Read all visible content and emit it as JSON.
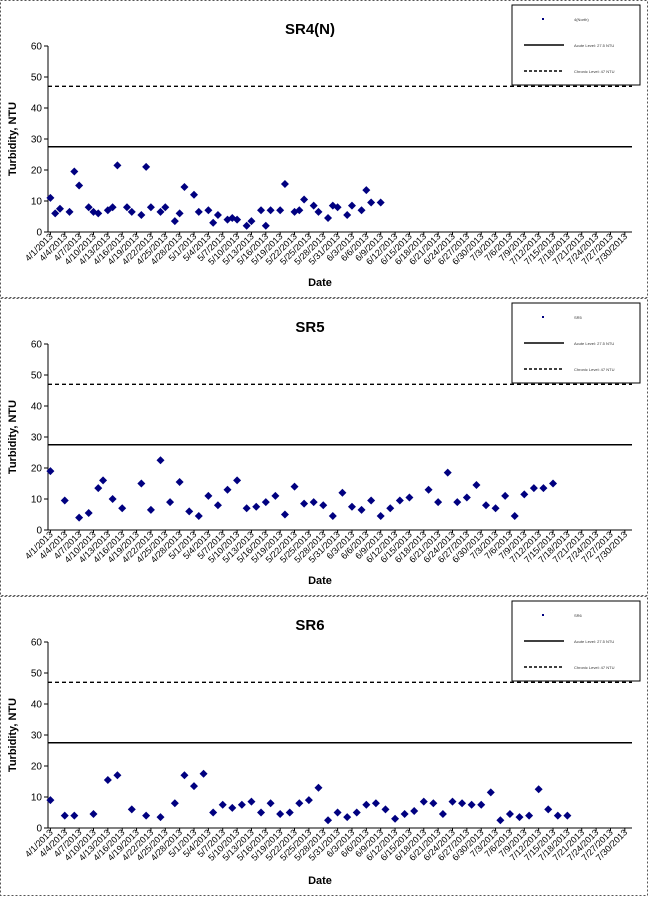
{
  "chart_data": [
    {
      "type": "scatter",
      "title": "SR4(N)",
      "xlabel": "Date",
      "ylabel": "Turbidity, NTU",
      "ylim": [
        0,
        60
      ],
      "yticks": [
        0,
        10,
        20,
        30,
        40,
        50,
        60
      ],
      "xticks": [
        "4/1/2013",
        "4/4/2013",
        "4/7/2013",
        "4/10/2013",
        "4/13/2013",
        "4/16/2013",
        "4/19/2013",
        "4/22/2013",
        "4/25/2013",
        "4/28/2013",
        "5/1/2013",
        "5/4/2013",
        "5/7/2013",
        "5/10/2013",
        "5/13/2013",
        "5/16/2013",
        "5/19/2013",
        "5/22/2013",
        "5/25/2013",
        "5/28/2013",
        "5/31/2013",
        "6/3/2013",
        "6/6/2013",
        "6/9/2013",
        "6/12/2013",
        "6/15/2013",
        "6/18/2013",
        "6/21/2013",
        "6/24/2013",
        "6/27/2013",
        "6/30/2013",
        "7/3/2013",
        "7/6/2013",
        "7/9/2013",
        "7/12/2013",
        "7/15/2013",
        "7/18/2013",
        "7/21/2013",
        "7/24/2013",
        "7/27/2013",
        "7/30/2013"
      ],
      "series": [
        {
          "name": "4(North)",
          "color": "#000080",
          "x": [
            "4/1/2013",
            "4/2/2013",
            "4/3/2013",
            "4/5/2013",
            "4/6/2013",
            "4/7/2013",
            "4/9/2013",
            "4/10/2013",
            "4/11/2013",
            "4/13/2013",
            "4/14/2013",
            "4/15/2013",
            "4/17/2013",
            "4/18/2013",
            "4/20/2013",
            "4/21/2013",
            "4/22/2013",
            "4/24/2013",
            "4/25/2013",
            "4/27/2013",
            "4/28/2013",
            "4/29/2013",
            "5/1/2013",
            "5/2/2013",
            "5/4/2013",
            "5/5/2013",
            "5/6/2013",
            "5/8/2013",
            "5/9/2013",
            "5/10/2013",
            "5/12/2013",
            "5/13/2013",
            "5/15/2013",
            "5/16/2013",
            "5/17/2013",
            "5/19/2013",
            "5/20/2013",
            "5/22/2013",
            "5/23/2013",
            "5/24/2013",
            "5/26/2013",
            "5/27/2013",
            "5/29/2013",
            "5/30/2013",
            "5/31/2013",
            "6/2/2013",
            "6/3/2013",
            "6/5/2013",
            "6/6/2013",
            "6/7/2013",
            "6/9/2013",
            "6/10/2013",
            "6/12/2013",
            "6/13/2013",
            "6/14/2013",
            "6/16/2013",
            "6/17/2013",
            "6/19/2013",
            "6/20/2013",
            "6/21/2013",
            "6/23/2013",
            "6/24/2013",
            "6/26/2013",
            "6/27/2013",
            "6/28/2013",
            "6/30/2013",
            "7/1/2013",
            "7/3/2013",
            "7/4/2013",
            "7/5/2013",
            "7/7/2013",
            "7/8/2013",
            "7/10/2013",
            "7/11/2013",
            "7/12/2013",
            "7/14/2013",
            "7/15/2013",
            "7/17/2013",
            "7/18/2013",
            "7/20/2013",
            "7/21/2013",
            "7/23/2013",
            "7/24/2013",
            "7/25/2013",
            "7/27/2013",
            "7/28/2013",
            "7/30/2013",
            "7/31/2013"
          ],
          "y": [
            11,
            6,
            7.5,
            6.5,
            19.5,
            15,
            8,
            6.5,
            6,
            7,
            8,
            21.5,
            8,
            6.5,
            5.5,
            21,
            8,
            6.5,
            8,
            3.5,
            6,
            14.5,
            12,
            6.5,
            7,
            3,
            5.5,
            4,
            4.5,
            4,
            2,
            3.5,
            7,
            2,
            7,
            7,
            15.5,
            6.5,
            7,
            10.5,
            8.5,
            6.5,
            4.5,
            8.5,
            8,
            5.5,
            8.5,
            7,
            13.5,
            9.5,
            9.5,
            null,
            null,
            null,
            null,
            null,
            null,
            null,
            null,
            null,
            null,
            null,
            null,
            null,
            null,
            null,
            null,
            null,
            null,
            null,
            null,
            null,
            null,
            null,
            null,
            null,
            null,
            null,
            null,
            null,
            null,
            null,
            null,
            null,
            null,
            null,
            null,
            null
          ]
        }
      ],
      "reference_lines": [
        {
          "name": "Acute Level: 27.5 NTU",
          "value": 27.5,
          "style": "solid"
        },
        {
          "name": "Chronic Level: 47 NTU",
          "value": 47,
          "style": "dashed"
        }
      ],
      "legend": "top-right",
      "grid": false
    },
    {
      "type": "scatter",
      "title": "SR5",
      "xlabel": "Date",
      "ylabel": "Turbidity, NTU",
      "ylim": [
        0,
        60
      ],
      "yticks": [
        0,
        10,
        20,
        30,
        40,
        50,
        60
      ],
      "xticks": [
        "4/1/2013",
        "4/4/2013",
        "4/7/2013",
        "4/10/2013",
        "4/13/2013",
        "4/16/2013",
        "4/19/2013",
        "4/22/2013",
        "4/25/2013",
        "4/28/2013",
        "5/1/2013",
        "5/4/2013",
        "5/7/2013",
        "5/10/2013",
        "5/13/2013",
        "5/16/2013",
        "5/19/2013",
        "5/22/2013",
        "5/25/2013",
        "5/28/2013",
        "5/31/2013",
        "6/3/2013",
        "6/6/2013",
        "6/9/2013",
        "6/12/2013",
        "6/15/2013",
        "6/18/2013",
        "6/21/2013",
        "6/24/2013",
        "6/27/2013",
        "6/30/2013",
        "7/3/2013",
        "7/6/2013",
        "7/9/2013",
        "7/12/2013",
        "7/15/2013",
        "7/18/2013",
        "7/21/2013",
        "7/24/2013",
        "7/27/2013",
        "7/30/2013"
      ],
      "series": [
        {
          "name": "SR5",
          "color": "#000080",
          "x": [
            0,
            3,
            6,
            8,
            10,
            11,
            13,
            15,
            19,
            21,
            23,
            25,
            27,
            29,
            31,
            33,
            35,
            37,
            39,
            41,
            43,
            45,
            47,
            49,
            51,
            53,
            55,
            57,
            59,
            61,
            63,
            65,
            67,
            69,
            71,
            73,
            75,
            79,
            81,
            83,
            85,
            87,
            89,
            91,
            93,
            95,
            97,
            99,
            101,
            103,
            105,
            107,
            109,
            111,
            113,
            115,
            117,
            119,
            121
          ],
          "y": [
            19,
            9.5,
            4,
            5.5,
            13.5,
            16,
            10,
            7,
            15,
            6.5,
            22.5,
            9,
            15.5,
            6,
            4.5,
            11,
            8,
            13,
            16,
            7,
            7.5,
            9,
            11,
            5,
            14,
            8.5,
            9,
            8,
            4.5,
            12,
            7.5,
            6.5,
            9.5,
            4.5,
            7,
            9.5,
            10.5,
            13,
            9,
            18.5,
            9,
            10.5,
            14.5,
            8,
            7,
            11,
            4.5,
            11.5,
            13.5,
            13.5,
            15,
            null,
            null,
            null,
            null,
            null,
            null,
            null,
            null
          ]
        }
      ],
      "reference_lines": [
        {
          "name": "Acute Level: 27.5 NTU",
          "value": 27.5,
          "style": "solid"
        },
        {
          "name": "Chronic Level: 47 NTU",
          "value": 47,
          "style": "dashed"
        }
      ],
      "legend": "top-right",
      "grid": false
    },
    {
      "type": "scatter",
      "title": "SR6",
      "xlabel": "Date",
      "ylabel": "Turbidity, NTU",
      "ylim": [
        0,
        60
      ],
      "yticks": [
        0,
        10,
        20,
        30,
        40,
        50,
        60
      ],
      "xticks": [
        "4/1/2013",
        "4/4/2013",
        "4/7/2013",
        "4/10/2013",
        "4/13/2013",
        "4/16/2013",
        "4/19/2013",
        "4/22/2013",
        "4/25/2013",
        "4/28/2013",
        "5/1/2013",
        "5/4/2013",
        "5/7/2013",
        "5/10/2013",
        "5/13/2013",
        "5/16/2013",
        "5/19/2013",
        "5/22/2013",
        "5/25/2013",
        "5/28/2013",
        "5/31/2013",
        "6/3/2013",
        "6/6/2013",
        "6/9/2013",
        "6/12/2013",
        "6/15/2013",
        "6/18/2013",
        "6/21/2013",
        "6/24/2013",
        "6/27/2013",
        "6/30/2013",
        "7/3/2013",
        "7/6/2013",
        "7/9/2013",
        "7/12/2013",
        "7/15/2013",
        "7/18/2013",
        "7/21/2013",
        "7/24/2013",
        "7/27/2013",
        "7/30/2013"
      ],
      "series": [
        {
          "name": "SR6",
          "color": "#000080",
          "x": [
            0,
            3,
            5,
            9,
            12,
            14,
            17,
            20,
            23,
            26,
            28,
            30,
            32,
            34,
            36,
            38,
            40,
            42,
            44,
            46,
            48,
            50,
            52,
            54,
            56,
            58,
            60,
            62,
            64,
            66,
            68,
            70,
            72,
            74,
            76,
            78,
            80,
            82,
            84,
            86,
            88,
            90,
            92,
            94,
            96,
            98,
            100,
            102,
            104,
            106,
            108,
            110,
            112,
            114,
            116,
            118,
            120
          ],
          "y": [
            9,
            4,
            4,
            4.5,
            15.5,
            17,
            6,
            4,
            3.5,
            8,
            17,
            13.5,
            17.5,
            5,
            7.5,
            6.5,
            7.5,
            8.5,
            5,
            8,
            4.5,
            5,
            8,
            9,
            13,
            2.5,
            5,
            3.5,
            5,
            7.5,
            8,
            6,
            3,
            4.5,
            5.5,
            8.5,
            8,
            4.5,
            8.5,
            8,
            7.5,
            7.5,
            11.5,
            2.5,
            4.5,
            3.5,
            4,
            12.5,
            6,
            4,
            4,
            null,
            null,
            null,
            null,
            null,
            null
          ]
        }
      ],
      "reference_lines": [
        {
          "name": "Acute Level: 27.5 NTU",
          "value": 27.5,
          "style": "solid"
        },
        {
          "name": "Chronic Level: 47 NTU",
          "value": 47,
          "style": "dashed"
        }
      ],
      "legend": "top-right",
      "grid": false
    }
  ]
}
